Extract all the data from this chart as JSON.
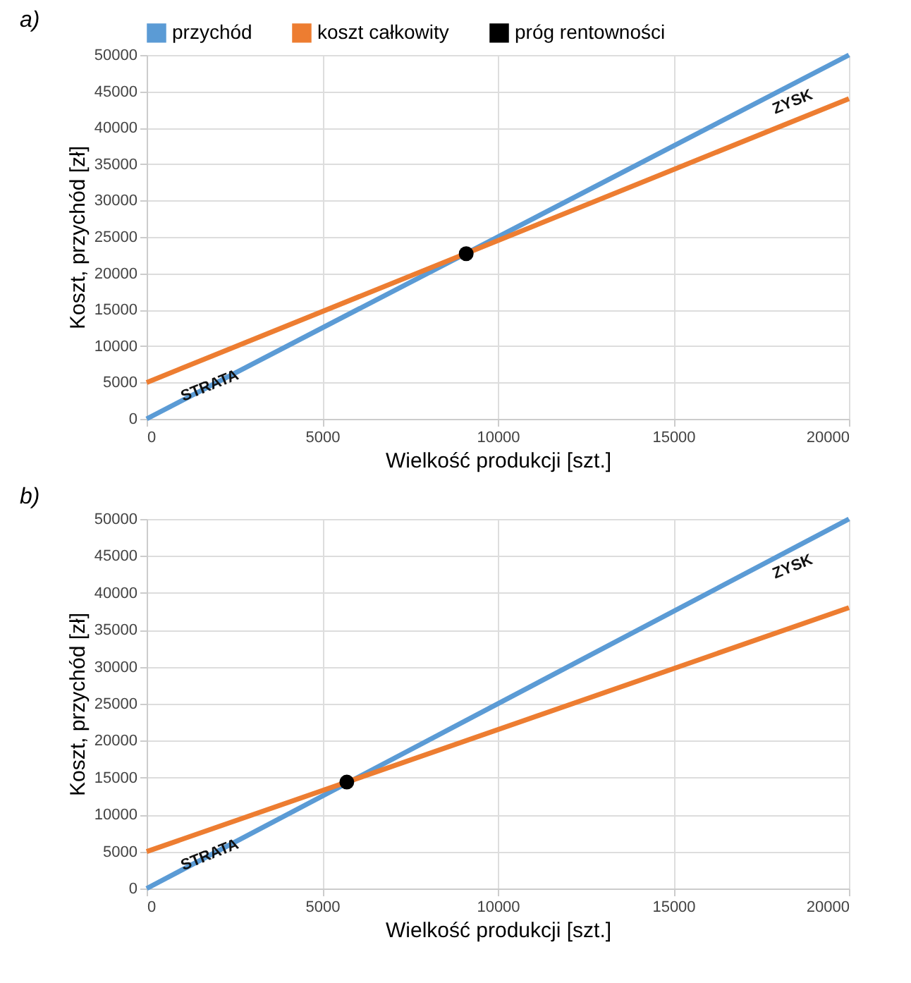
{
  "chart_data": [
    {
      "type": "line",
      "title": "a)",
      "xlabel": "Wielkość produkcji [szt.]",
      "ylabel": "Koszt, przychód [zł]",
      "series": [
        {
          "name": "przychód",
          "color": "#5b9bd5",
          "x": [
            0,
            20000
          ],
          "values": [
            0,
            50000
          ]
        },
        {
          "name": "koszt całkowity",
          "color": "#ed7d31",
          "x": [
            0,
            20000
          ],
          "values": [
            5000,
            44000
          ]
        },
        {
          "name": "próg rentowności",
          "type": "scatter",
          "color": "#000000",
          "x": [
            9100
          ],
          "values": [
            22700
          ]
        }
      ],
      "annotations": [
        "STRATA",
        "ZYSK"
      ],
      "xlim": [
        0,
        20000
      ],
      "xticks": [
        0,
        5000,
        10000,
        15000,
        20000
      ],
      "ylim": [
        0,
        50000
      ],
      "yticks": [
        0,
        5000,
        10000,
        15000,
        20000,
        25000,
        30000,
        35000,
        40000,
        45000,
        50000
      ],
      "grid": true,
      "legend": "top"
    },
    {
      "type": "line",
      "title": "b)",
      "xlabel": "Wielkość produkcji [szt.]",
      "ylabel": "Koszt, przychód [zł]",
      "series": [
        {
          "color": "#5b9bd5",
          "x": [
            0,
            20000
          ],
          "values": [
            0,
            50000
          ]
        },
        {
          "color": "#ed7d31",
          "x": [
            0,
            20000
          ],
          "values": [
            5000,
            38000
          ]
        },
        {
          "type": "scatter",
          "color": "#000000",
          "x": [
            5700
          ],
          "values": [
            14400
          ]
        }
      ],
      "annotations": [
        "STRATA",
        "ZYSK"
      ],
      "xlim": [
        0,
        20000
      ],
      "xticks": [
        0,
        5000,
        10000,
        15000,
        20000
      ],
      "ylim": [
        0,
        50000
      ],
      "yticks": [
        0,
        5000,
        10000,
        15000,
        20000,
        25000,
        30000,
        35000,
        40000,
        45000,
        50000
      ],
      "grid": true
    }
  ]
}
